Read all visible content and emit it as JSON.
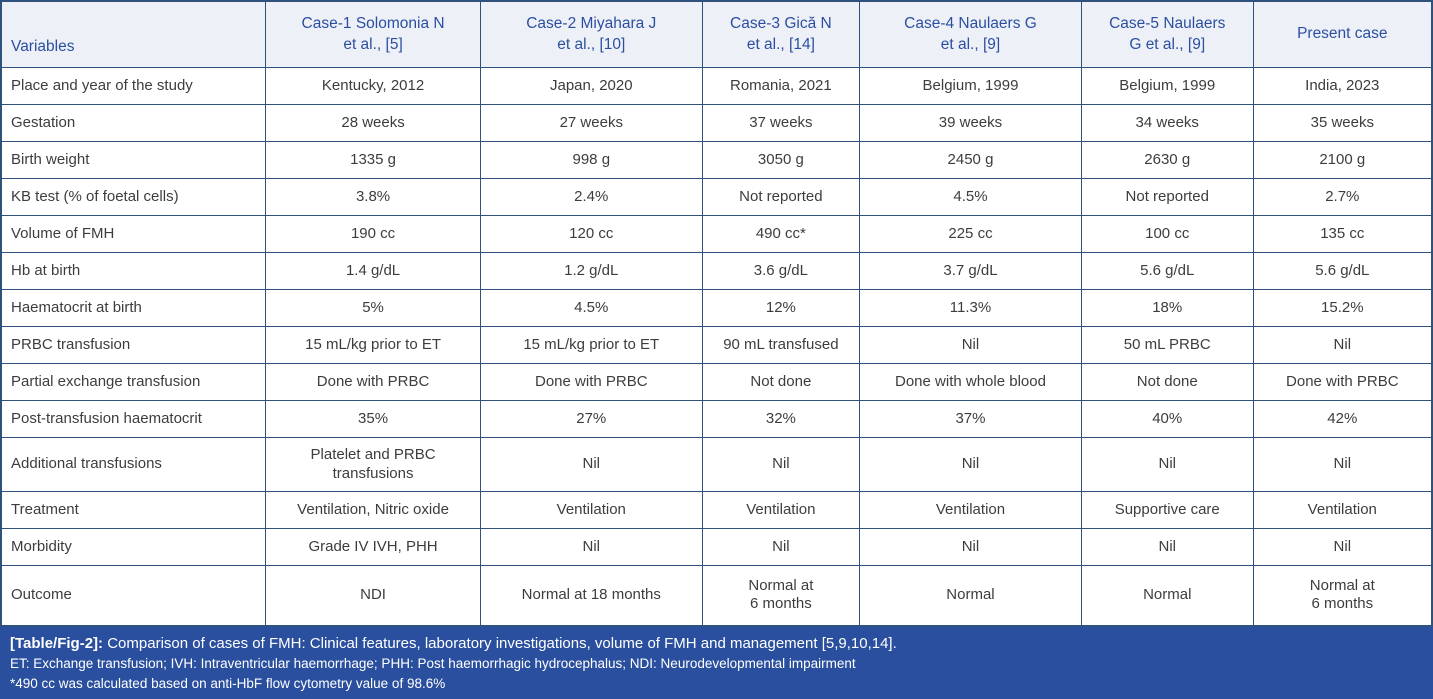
{
  "colors": {
    "border": "#2e527c",
    "header_bg": "#eef0f7",
    "header_text": "#2b4fa0",
    "body_text": "#3d3d3d",
    "footer_bg": "#2a4f9e",
    "footer_text": "#ffffff"
  },
  "chart_data": {
    "type": "table",
    "title": "[Table/Fig-2]: Comparison of cases of FMH: Clinical features, laboratory investigations, volume of FMH and management [5,9,10,14].",
    "columns": [
      "Variables",
      "Case-1 Solomonia N\net al., [5]",
      "Case-2 Miyahara J\net al., [10]",
      "Case-3 Gică N\net al., [14]",
      "Case-4 Naulaers G\net al., [9]",
      "Case-5 Naulaers\nG et al., [9]",
      "Present case"
    ],
    "rows": [
      {
        "label": "Place and year of the study",
        "values": [
          "Kentucky, 2012",
          "Japan, 2020",
          "Romania, 2021",
          "Belgium, 1999",
          "Belgium, 1999",
          "India, 2023"
        ],
        "size": "std"
      },
      {
        "label": "Gestation",
        "values": [
          "28 weeks",
          "27 weeks",
          "37 weeks",
          "39 weeks",
          "34 weeks",
          "35 weeks"
        ],
        "size": "std"
      },
      {
        "label": "Birth weight",
        "values": [
          "1335 g",
          "998 g",
          "3050 g",
          "2450 g",
          "2630 g",
          "2100 g"
        ],
        "size": "std"
      },
      {
        "label": "KB test (% of foetal cells)",
        "values": [
          "3.8%",
          "2.4%",
          "Not reported",
          "4.5%",
          "Not reported",
          "2.7%"
        ],
        "size": "std"
      },
      {
        "label": "Volume of FMH",
        "values": [
          "190 cc",
          "120 cc",
          "490 cc*",
          "225 cc",
          "100 cc",
          "135 cc"
        ],
        "size": "std"
      },
      {
        "label": "Hb at birth",
        "values": [
          "1.4 g/dL",
          "1.2 g/dL",
          "3.6 g/dL",
          "3.7 g/dL",
          "5.6 g/dL",
          "5.6 g/dL"
        ],
        "size": "std"
      },
      {
        "label": "Haematocrit at birth",
        "values": [
          "5%",
          "4.5%",
          "12%",
          "11.3%",
          "18%",
          "15.2%"
        ],
        "size": "std"
      },
      {
        "label": "PRBC transfusion",
        "values": [
          "15 mL/kg prior to ET",
          "15 mL/kg prior to ET",
          "90 mL transfused",
          "Nil",
          "50 mL PRBC",
          "Nil"
        ],
        "size": "std"
      },
      {
        "label": "Partial exchange transfusion",
        "values": [
          "Done with PRBC",
          "Done with PRBC",
          "Not done",
          "Done with whole blood",
          "Not done",
          "Done with PRBC"
        ],
        "size": "std"
      },
      {
        "label": "Post-transfusion haematocrit",
        "values": [
          "35%",
          "27%",
          "32%",
          "37%",
          "40%",
          "42%"
        ],
        "size": "std"
      },
      {
        "label": "Additional transfusions",
        "values": [
          "Platelet and PRBC\ntransfusions",
          "Nil",
          "Nil",
          "Nil",
          "Nil",
          "Nil"
        ],
        "size": "tall-1"
      },
      {
        "label": "Treatment",
        "values": [
          "Ventilation, Nitric oxide",
          "Ventilation",
          "Ventilation",
          "Ventilation",
          "Supportive care",
          "Ventilation"
        ],
        "size": "std"
      },
      {
        "label": "Morbidity",
        "values": [
          "Grade IV IVH, PHH",
          "Nil",
          "Nil",
          "Nil",
          "Nil",
          "Nil"
        ],
        "size": "std"
      },
      {
        "label": "Outcome",
        "values": [
          "NDI",
          "Normal at 18 months",
          "Normal at\n6 months",
          "Normal",
          "Normal",
          "Normal at\n6 months"
        ],
        "size": "tall-2"
      }
    ]
  },
  "footer": {
    "caption_label": "[Table/Fig-2]:",
    "caption_text": " Comparison of cases of FMH: Clinical features, laboratory investigations, volume of FMH and management [5,9,10,14].",
    "abbreviations": "ET: Exchange transfusion; IVH: Intraventricular haemorrhage; PHH: Post haemorrhagic hydrocephalus; NDI: Neurodevelopmental impairment",
    "footnote": "*490 cc was calculated based on anti-HbF flow cytometry value of 98.6%"
  }
}
